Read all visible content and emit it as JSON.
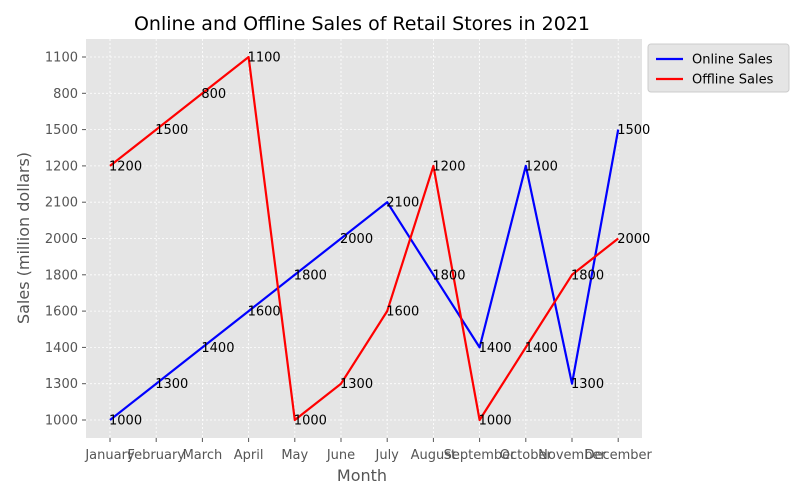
{
  "chart_data": {
    "type": "line",
    "title": "Online and Offline Sales of Retail Stores in 2021",
    "xlabel": "Month",
    "ylabel": "Sales (million dollars)",
    "categories": [
      "January",
      "February",
      "March",
      "April",
      "May",
      "June",
      "July",
      "August",
      "September",
      "October",
      "November",
      "December"
    ],
    "y_axis_order": [
      "1000",
      "1300",
      "1400",
      "1600",
      "1800",
      "2000",
      "2100",
      "1200",
      "1500",
      "800",
      "1100"
    ],
    "series": [
      {
        "name": "Online Sales",
        "color": "#0000ff",
        "values": [
          "1000",
          "1300",
          "1400",
          "1600",
          "1800",
          "2000",
          "2100",
          "1800",
          "1400",
          "1200",
          "1300",
          "1500"
        ]
      },
      {
        "name": "Offline Sales",
        "color": "#ff0000",
        "values": [
          "1200",
          "1500",
          "800",
          "1100",
          "1000",
          "1300",
          "1600",
          "1200",
          "1000",
          "1400",
          "1800",
          "2000"
        ]
      }
    ],
    "grid": true,
    "legend_position": "outside-top-right",
    "background": "#e5e5e5"
  }
}
